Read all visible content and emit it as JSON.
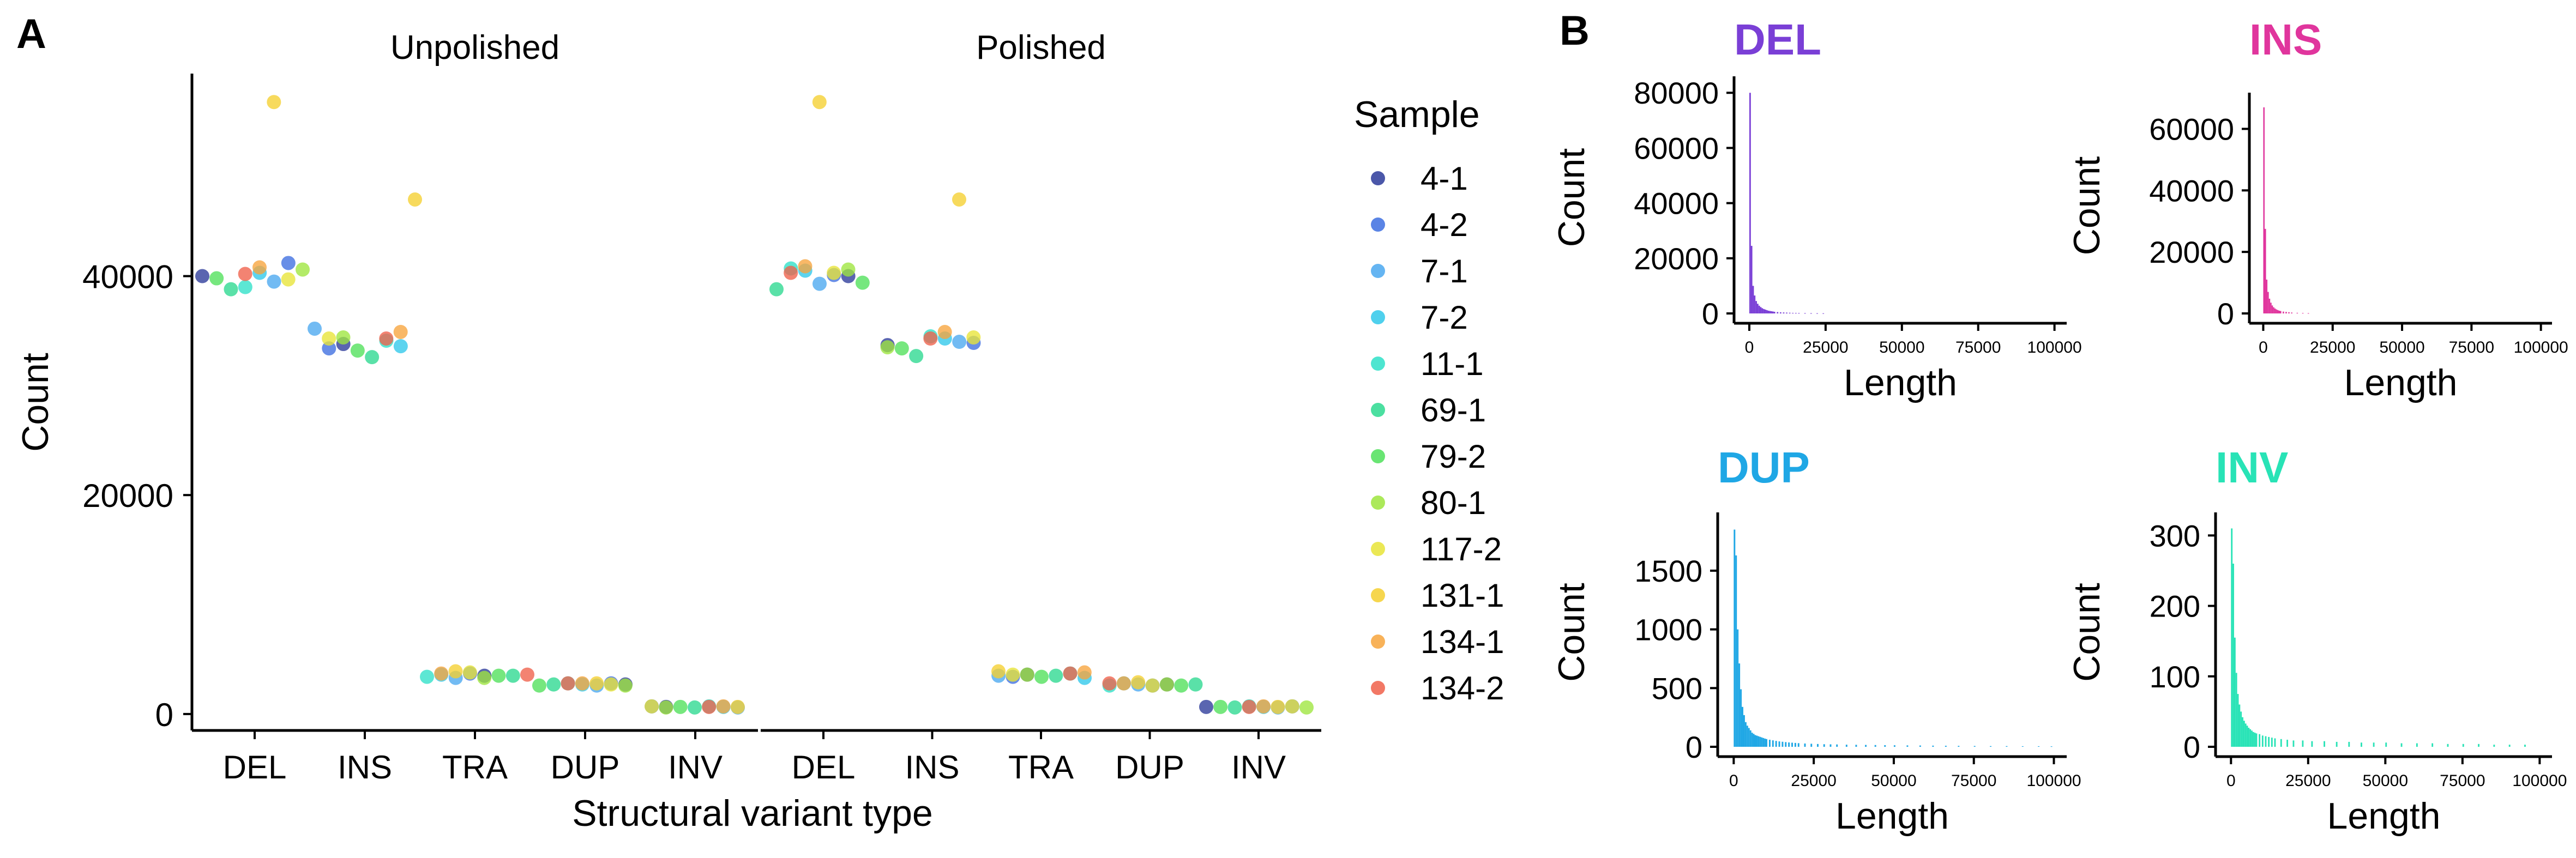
{
  "panel_labels": {
    "a": "A",
    "b": "B"
  },
  "colors": {
    "DEL": "#7a3fd6",
    "INS": "#e0359d",
    "DUP": "#1fa7e5",
    "INV": "#28e3b6"
  },
  "chart_data": [
    {
      "type": "scatter",
      "facets": [
        "Unpolished",
        "Polished"
      ],
      "categories": [
        "DEL",
        "INS",
        "TRA",
        "DUP",
        "INV"
      ],
      "xlabel": "Structural variant type",
      "ylabel": "Count",
      "ylim": [
        -1500,
        58500
      ],
      "yticks": [
        0,
        20000,
        40000
      ],
      "grid": false,
      "legend": {
        "title": "Sample",
        "placement": "right"
      },
      "series": [
        {
          "name": "4-1",
          "color": "#2b3a9a",
          "points": {
            "Unpolished": {
              "DEL": 40000,
              "INS": 33800,
              "TRA": 3500,
              "DUP": 2700,
              "INV": 650
            },
            "Polished": {
              "DEL": 40000,
              "INS": 33700,
              "TRA": 3600,
              "DUP": 2700,
              "INV": 650
            }
          }
        },
        {
          "name": "4-2",
          "color": "#3d6ee0",
          "points": {
            "Unpolished": {
              "DEL": 41200,
              "INS": 33400,
              "TRA": 3700,
              "DUP": 2800,
              "INV": 700
            },
            "Polished": {
              "DEL": 40100,
              "INS": 33900,
              "TRA": 3400,
              "DUP": 2600,
              "INV": 700
            }
          }
        },
        {
          "name": "7-1",
          "color": "#4aa8f0",
          "points": {
            "Unpolished": {
              "DEL": 39500,
              "INS": 35200,
              "TRA": 3300,
              "DUP": 2600,
              "INV": 600
            },
            "Polished": {
              "DEL": 39300,
              "INS": 34000,
              "TRA": 3500,
              "DUP": 2700,
              "INV": 600
            }
          }
        },
        {
          "name": "7-2",
          "color": "#30c8ea",
          "points": {
            "Unpolished": {
              "DEL": 40300,
              "INS": 33600,
              "TRA": 3600,
              "DUP": 2700,
              "INV": 650
            },
            "Polished": {
              "DEL": 40500,
              "INS": 34300,
              "TRA": 3300,
              "DUP": 2800,
              "INV": 650
            }
          }
        },
        {
          "name": "11-1",
          "color": "#2ee0c8",
          "points": {
            "Unpolished": {
              "DEL": 39000,
              "INS": 34100,
              "TRA": 3400,
              "DUP": 2800,
              "INV": 700
            },
            "Polished": {
              "DEL": 40700,
              "INS": 34500,
              "TRA": 3700,
              "DUP": 2600,
              "INV": 700
            }
          }
        },
        {
          "name": "69-1",
          "color": "#2bd98f",
          "points": {
            "Unpolished": {
              "DEL": 38800,
              "INS": 32600,
              "TRA": 3500,
              "DUP": 2700,
              "INV": 600
            },
            "Polished": {
              "DEL": 38800,
              "INS": 32700,
              "TRA": 3500,
              "DUP": 2700,
              "INV": 600
            }
          }
        },
        {
          "name": "79-2",
          "color": "#4fe05a",
          "points": {
            "Unpolished": {
              "DEL": 39800,
              "INS": 33200,
              "TRA": 3500,
              "DUP": 2600,
              "INV": 650
            },
            "Polished": {
              "DEL": 39400,
              "INS": 33400,
              "TRA": 3400,
              "DUP": 2600,
              "INV": 650
            }
          }
        },
        {
          "name": "80-1",
          "color": "#9ee53d",
          "points": {
            "Unpolished": {
              "DEL": 40600,
              "INS": 34400,
              "TRA": 3300,
              "DUP": 2600,
              "INV": 600
            },
            "Polished": {
              "DEL": 40600,
              "INS": 33500,
              "TRA": 3600,
              "DUP": 2700,
              "INV": 600
            }
          }
        },
        {
          "name": "117-2",
          "color": "#e8e437",
          "points": {
            "Unpolished": {
              "DEL": 39700,
              "INS": 34300,
              "TRA": 3800,
              "DUP": 2700,
              "INV": 700
            },
            "Polished": {
              "DEL": 40300,
              "INS": 34400,
              "TRA": 3600,
              "DUP": 2600,
              "INV": 700
            }
          }
        },
        {
          "name": "131-1",
          "color": "#f5cf2f",
          "points": {
            "Unpolished": {
              "DEL": 55900,
              "INS": 47000,
              "TRA": 3900,
              "DUP": 2800,
              "INV": 650
            },
            "Polished": {
              "DEL": 55900,
              "INS": 47000,
              "TRA": 3900,
              "DUP": 2900,
              "INV": 650
            }
          }
        },
        {
          "name": "134-1",
          "color": "#f7a43c",
          "points": {
            "Unpolished": {
              "DEL": 40800,
              "INS": 34900,
              "TRA": 3700,
              "DUP": 2800,
              "INV": 700
            },
            "Polished": {
              "DEL": 40900,
              "INS": 34900,
              "TRA": 3800,
              "DUP": 2800,
              "INV": 700
            }
          }
        },
        {
          "name": "134-2",
          "color": "#f0604a",
          "points": {
            "Unpolished": {
              "DEL": 40200,
              "INS": 34300,
              "TRA": 3600,
              "DUP": 2800,
              "INV": 650
            },
            "Polished": {
              "DEL": 40300,
              "INS": 34300,
              "TRA": 3700,
              "DUP": 2800,
              "INV": 650
            }
          }
        }
      ]
    },
    {
      "type": "bar",
      "title": "DEL",
      "color_key": "DEL",
      "xlabel": "Length",
      "ylabel": "Count",
      "xlim": [
        -5000,
        104000
      ],
      "ylim": [
        0,
        84000
      ],
      "xticks": [
        0,
        25000,
        50000,
        75000,
        100000
      ],
      "yticks": [
        0,
        20000,
        40000,
        60000,
        80000
      ],
      "bin_width": 500,
      "bins": [
        [
          0,
          80000
        ],
        [
          500,
          24500
        ],
        [
          1000,
          10000
        ],
        [
          1500,
          6500
        ],
        [
          2000,
          4500
        ],
        [
          2500,
          3500
        ],
        [
          3000,
          2800
        ],
        [
          3500,
          2300
        ],
        [
          4000,
          1900
        ],
        [
          4500,
          1600
        ],
        [
          5000,
          1400
        ],
        [
          5500,
          1200
        ],
        [
          6000,
          1000
        ],
        [
          6500,
          900
        ],
        [
          7000,
          800
        ],
        [
          7500,
          700
        ],
        [
          8000,
          600
        ],
        [
          9000,
          500
        ],
        [
          10000,
          400
        ],
        [
          11000,
          350
        ],
        [
          12000,
          300
        ],
        [
          13000,
          250
        ],
        [
          14000,
          200
        ],
        [
          15000,
          180
        ],
        [
          16000,
          150
        ],
        [
          18000,
          120
        ],
        [
          20000,
          100
        ],
        [
          22000,
          80
        ],
        [
          24000,
          60
        ]
      ]
    },
    {
      "type": "bar",
      "title": "INS",
      "color_key": "INS",
      "xlabel": "Length",
      "ylabel": "Count",
      "xlim": [
        -5000,
        104000
      ],
      "ylim": [
        0,
        70000
      ],
      "xticks": [
        0,
        25000,
        50000,
        75000,
        100000
      ],
      "yticks": [
        0,
        20000,
        40000,
        60000
      ],
      "bin_width": 500,
      "bins": [
        [
          0,
          67000
        ],
        [
          500,
          27500
        ],
        [
          1000,
          11000
        ],
        [
          1500,
          7000
        ],
        [
          2000,
          4800
        ],
        [
          2500,
          3500
        ],
        [
          3000,
          2600
        ],
        [
          3500,
          2000
        ],
        [
          4000,
          1600
        ],
        [
          4500,
          1300
        ],
        [
          5000,
          1100
        ],
        [
          5500,
          900
        ],
        [
          6000,
          800
        ],
        [
          7000,
          600
        ],
        [
          8000,
          500
        ],
        [
          9000,
          400
        ],
        [
          10000,
          300
        ],
        [
          12000,
          200
        ],
        [
          14000,
          150
        ],
        [
          16000,
          100
        ]
      ]
    },
    {
      "type": "bar",
      "title": "DUP",
      "color_key": "DUP",
      "xlabel": "Length",
      "ylabel": "Count",
      "xlim": [
        -5000,
        104000
      ],
      "ylim": [
        0,
        1950
      ],
      "xticks": [
        0,
        25000,
        50000,
        75000,
        100000
      ],
      "yticks": [
        0,
        500,
        1000,
        1500
      ],
      "bin_width": 500,
      "bins": [
        [
          0,
          1850
        ],
        [
          500,
          1630
        ],
        [
          1000,
          1000
        ],
        [
          1500,
          710
        ],
        [
          2000,
          490
        ],
        [
          2500,
          340
        ],
        [
          3000,
          270
        ],
        [
          3500,
          210
        ],
        [
          4000,
          180
        ],
        [
          4500,
          160
        ],
        [
          5000,
          140
        ],
        [
          5500,
          120
        ],
        [
          6000,
          110
        ],
        [
          6500,
          100
        ],
        [
          7000,
          95
        ],
        [
          7500,
          90
        ],
        [
          8000,
          85
        ],
        [
          8500,
          80
        ],
        [
          9000,
          75
        ],
        [
          9500,
          70
        ],
        [
          10000,
          66
        ],
        [
          11000,
          60
        ],
        [
          12000,
          55
        ],
        [
          13000,
          50
        ],
        [
          14000,
          46
        ],
        [
          15000,
          43
        ],
        [
          16000,
          40
        ],
        [
          17000,
          37
        ],
        [
          18000,
          35
        ],
        [
          19000,
          33
        ],
        [
          20000,
          31
        ],
        [
          22000,
          28
        ],
        [
          24000,
          26
        ],
        [
          26000,
          24
        ],
        [
          28000,
          22
        ],
        [
          30000,
          21
        ],
        [
          32000,
          20
        ],
        [
          35000,
          18
        ],
        [
          38000,
          17
        ],
        [
          41000,
          16
        ],
        [
          44000,
          15
        ],
        [
          47000,
          14
        ],
        [
          50000,
          13
        ],
        [
          54000,
          12
        ],
        [
          58000,
          11
        ],
        [
          62000,
          10
        ],
        [
          66000,
          9
        ],
        [
          70000,
          8
        ],
        [
          75000,
          7
        ],
        [
          80000,
          6
        ],
        [
          85000,
          6
        ],
        [
          90000,
          5
        ],
        [
          95000,
          5
        ],
        [
          99000,
          4
        ]
      ]
    },
    {
      "type": "bar",
      "title": "INV",
      "color_key": "INV",
      "xlabel": "Length",
      "ylabel": "Count",
      "xlim": [
        -5000,
        104000
      ],
      "ylim": [
        0,
        325
      ],
      "xticks": [
        0,
        25000,
        50000,
        75000,
        100000
      ],
      "yticks": [
        0,
        100,
        200,
        300
      ],
      "bin_width": 500,
      "bins": [
        [
          0,
          310
        ],
        [
          500,
          260
        ],
        [
          1000,
          155
        ],
        [
          1500,
          105
        ],
        [
          2000,
          75
        ],
        [
          2500,
          60
        ],
        [
          3000,
          50
        ],
        [
          3500,
          42
        ],
        [
          4000,
          37
        ],
        [
          4500,
          33
        ],
        [
          5000,
          30
        ],
        [
          5500,
          27
        ],
        [
          6000,
          25
        ],
        [
          6500,
          23
        ],
        [
          7000,
          21
        ],
        [
          7500,
          20
        ],
        [
          8000,
          19
        ],
        [
          9000,
          18
        ],
        [
          10000,
          16
        ],
        [
          11000,
          15
        ],
        [
          12000,
          14
        ],
        [
          13000,
          13
        ],
        [
          14000,
          12
        ],
        [
          16000,
          11
        ],
        [
          18000,
          10
        ],
        [
          20000,
          9
        ],
        [
          23000,
          9
        ],
        [
          26000,
          8
        ],
        [
          30000,
          8
        ],
        [
          34000,
          7
        ],
        [
          38000,
          7
        ],
        [
          42000,
          6
        ],
        [
          46000,
          6
        ],
        [
          50000,
          6
        ],
        [
          55000,
          5
        ],
        [
          60000,
          5
        ],
        [
          65000,
          5
        ],
        [
          70000,
          4
        ],
        [
          75000,
          4
        ],
        [
          80000,
          4
        ],
        [
          85000,
          3
        ],
        [
          90000,
          3
        ],
        [
          95000,
          3
        ]
      ]
    }
  ]
}
